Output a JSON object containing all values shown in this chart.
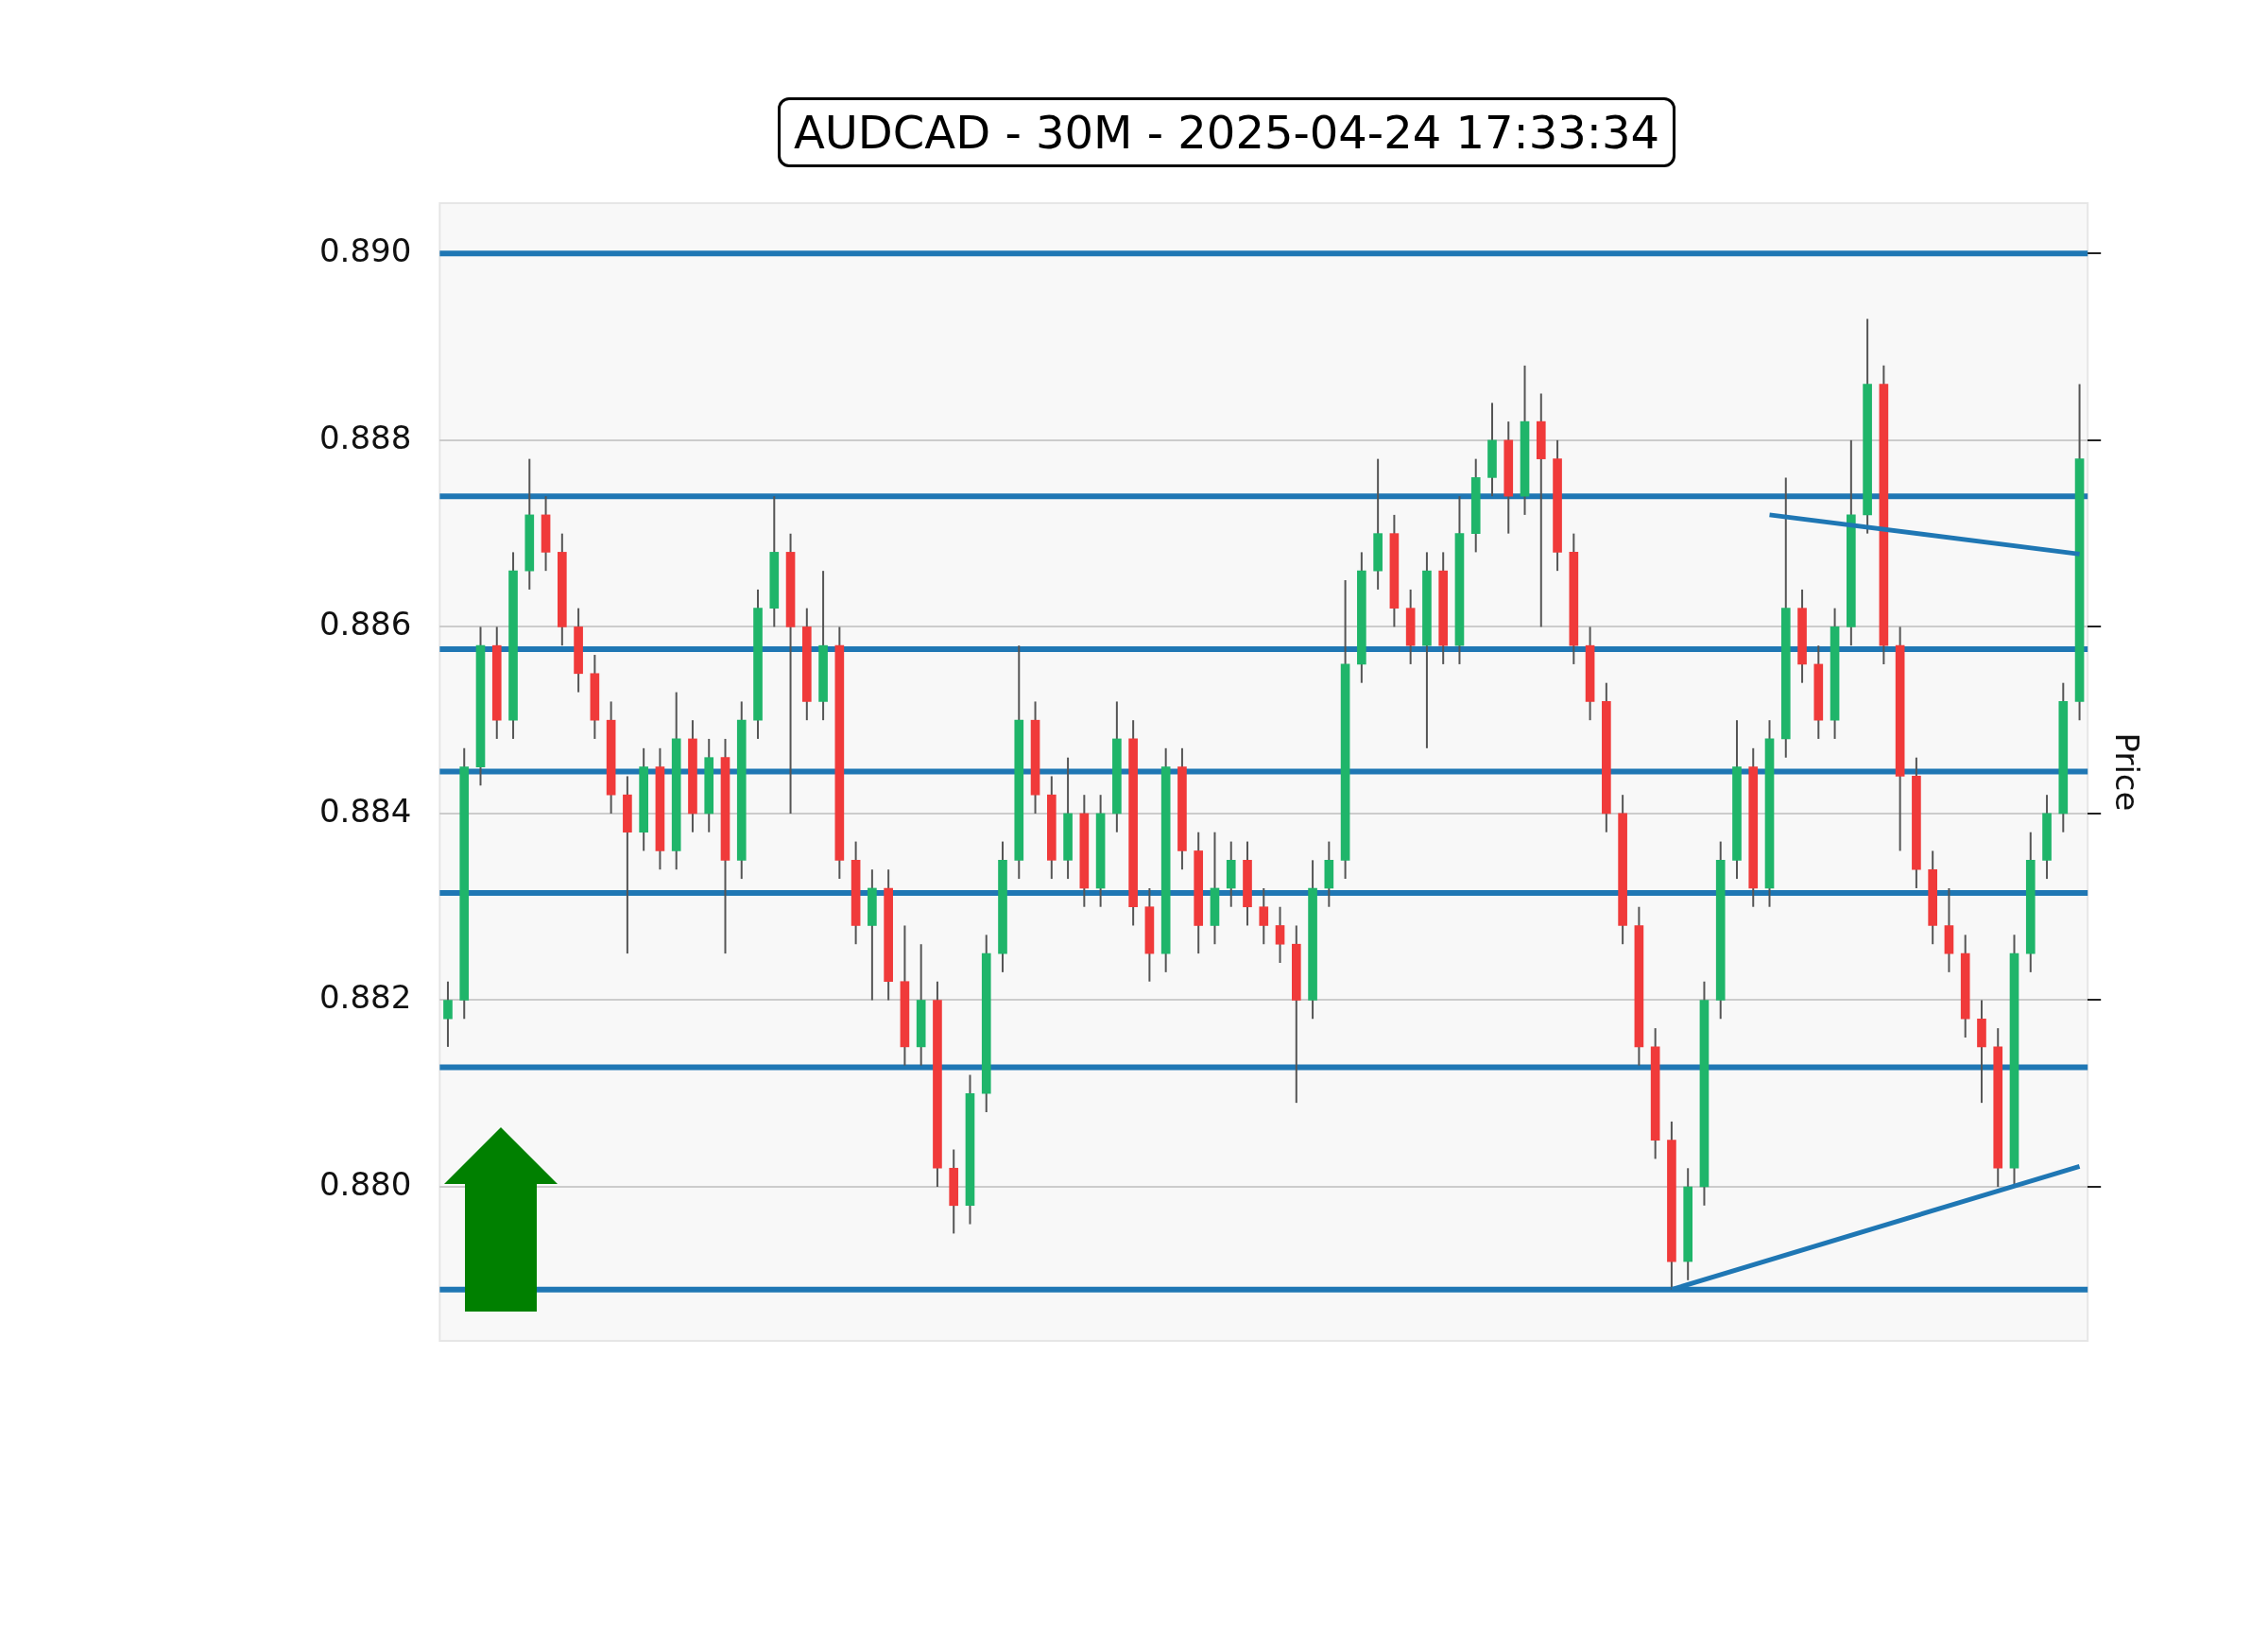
{
  "chart_data": {
    "type": "candlestick",
    "title": "AUDCAD - 30M - 2025-04-24 17:33:34",
    "ylabel": "Price",
    "categories": [
      null,
      null,
      null,
      null,
      null,
      null,
      null,
      null,
      null,
      null,
      null,
      null,
      null,
      null,
      null,
      null,
      null,
      null,
      null,
      null,
      null,
      null,
      null,
      null,
      null,
      null,
      null,
      null,
      null,
      null,
      null,
      null,
      null,
      null,
      null,
      null,
      null,
      null,
      null,
      null,
      null,
      null,
      null,
      null,
      null,
      null,
      null,
      null,
      null,
      null,
      null,
      null,
      null,
      null,
      null,
      null,
      null,
      null,
      null,
      null,
      null,
      null,
      null,
      null,
      null,
      null,
      null,
      null,
      null,
      null,
      null,
      null,
      null,
      null,
      null,
      null,
      null,
      null,
      null,
      null,
      null,
      null,
      null,
      null,
      null,
      null,
      null,
      null,
      null,
      null,
      null,
      null,
      null,
      null,
      null,
      null,
      null,
      null,
      null,
      null,
      null
    ],
    "ohlc": [
      [
        0.8818,
        0.8822,
        0.8815,
        0.882
      ],
      [
        0.882,
        0.8847,
        0.8818,
        0.8845
      ],
      [
        0.8845,
        0.886,
        0.8843,
        0.8858
      ],
      [
        0.8858,
        0.886,
        0.8848,
        0.885
      ],
      [
        0.885,
        0.8868,
        0.8848,
        0.8866
      ],
      [
        0.8866,
        0.8878,
        0.8864,
        0.8872
      ],
      [
        0.8872,
        0.8874,
        0.8866,
        0.8868
      ],
      [
        0.8868,
        0.887,
        0.8858,
        0.886
      ],
      [
        0.886,
        0.8862,
        0.8853,
        0.8855
      ],
      [
        0.8855,
        0.8857,
        0.8848,
        0.885
      ],
      [
        0.885,
        0.8852,
        0.884,
        0.8842
      ],
      [
        0.8842,
        0.8844,
        0.8825,
        0.8838
      ],
      [
        0.8838,
        0.8847,
        0.8836,
        0.8845
      ],
      [
        0.8845,
        0.8847,
        0.8834,
        0.8836
      ],
      [
        0.8836,
        0.8853,
        0.8834,
        0.8848
      ],
      [
        0.8848,
        0.885,
        0.8838,
        0.884
      ],
      [
        0.884,
        0.8848,
        0.8838,
        0.8846
      ],
      [
        0.8846,
        0.8848,
        0.8825,
        0.8835
      ],
      [
        0.8835,
        0.8852,
        0.8833,
        0.885
      ],
      [
        0.885,
        0.8864,
        0.8848,
        0.8862
      ],
      [
        0.8862,
        0.8874,
        0.886,
        0.8868
      ],
      [
        0.8868,
        0.887,
        0.884,
        0.886
      ],
      [
        0.886,
        0.8862,
        0.885,
        0.8852
      ],
      [
        0.8852,
        0.8866,
        0.885,
        0.8858
      ],
      [
        0.8858,
        0.886,
        0.8833,
        0.8835
      ],
      [
        0.8835,
        0.8837,
        0.8826,
        0.8828
      ],
      [
        0.8828,
        0.8834,
        0.882,
        0.8832
      ],
      [
        0.8832,
        0.8834,
        0.882,
        0.8822
      ],
      [
        0.8822,
        0.8828,
        0.8813,
        0.8815
      ],
      [
        0.8815,
        0.8826,
        0.8813,
        0.882
      ],
      [
        0.882,
        0.8822,
        0.88,
        0.8802
      ],
      [
        0.8802,
        0.8804,
        0.8795,
        0.8798
      ],
      [
        0.8798,
        0.8812,
        0.8796,
        0.881
      ],
      [
        0.881,
        0.8827,
        0.8808,
        0.8825
      ],
      [
        0.8825,
        0.8837,
        0.8823,
        0.8835
      ],
      [
        0.8835,
        0.8858,
        0.8833,
        0.885
      ],
      [
        0.885,
        0.8852,
        0.884,
        0.8842
      ],
      [
        0.8842,
        0.8844,
        0.8833,
        0.8835
      ],
      [
        0.8835,
        0.8846,
        0.8833,
        0.884
      ],
      [
        0.884,
        0.8842,
        0.883,
        0.8832
      ],
      [
        0.8832,
        0.8842,
        0.883,
        0.884
      ],
      [
        0.884,
        0.8852,
        0.8838,
        0.8848
      ],
      [
        0.8848,
        0.885,
        0.8828,
        0.883
      ],
      [
        0.883,
        0.8832,
        0.8822,
        0.8825
      ],
      [
        0.8825,
        0.8847,
        0.8823,
        0.8845
      ],
      [
        0.8845,
        0.8847,
        0.8834,
        0.8836
      ],
      [
        0.8836,
        0.8838,
        0.8825,
        0.8828
      ],
      [
        0.8828,
        0.8838,
        0.8826,
        0.8832
      ],
      [
        0.8832,
        0.8837,
        0.883,
        0.8835
      ],
      [
        0.8835,
        0.8837,
        0.8828,
        0.883
      ],
      [
        0.883,
        0.8832,
        0.8826,
        0.8828
      ],
      [
        0.8828,
        0.883,
        0.8824,
        0.8826
      ],
      [
        0.8826,
        0.8828,
        0.8809,
        0.882
      ],
      [
        0.882,
        0.8835,
        0.8818,
        0.8832
      ],
      [
        0.8832,
        0.8837,
        0.883,
        0.8835
      ],
      [
        0.8835,
        0.8865,
        0.8833,
        0.8856
      ],
      [
        0.8856,
        0.8868,
        0.8854,
        0.8866
      ],
      [
        0.8866,
        0.8878,
        0.8864,
        0.887
      ],
      [
        0.887,
        0.8872,
        0.886,
        0.8862
      ],
      [
        0.8862,
        0.8864,
        0.8856,
        0.8858
      ],
      [
        0.8858,
        0.8868,
        0.8847,
        0.8866
      ],
      [
        0.8866,
        0.8868,
        0.8856,
        0.8858
      ],
      [
        0.8858,
        0.8874,
        0.8856,
        0.887
      ],
      [
        0.887,
        0.8878,
        0.8868,
        0.8876
      ],
      [
        0.8876,
        0.8884,
        0.8874,
        0.888
      ],
      [
        0.888,
        0.8882,
        0.887,
        0.8874
      ],
      [
        0.8874,
        0.8888,
        0.8872,
        0.8882
      ],
      [
        0.8882,
        0.8885,
        0.886,
        0.8878
      ],
      [
        0.8878,
        0.888,
        0.8866,
        0.8868
      ],
      [
        0.8868,
        0.887,
        0.8856,
        0.8858
      ],
      [
        0.8858,
        0.886,
        0.885,
        0.8852
      ],
      [
        0.8852,
        0.8854,
        0.8838,
        0.884
      ],
      [
        0.884,
        0.8842,
        0.8826,
        0.8828
      ],
      [
        0.8828,
        0.883,
        0.8813,
        0.8815
      ],
      [
        0.8815,
        0.8817,
        0.8803,
        0.8805
      ],
      [
        0.8805,
        0.8807,
        0.8789,
        0.8792
      ],
      [
        0.8792,
        0.8802,
        0.879,
        0.88
      ],
      [
        0.88,
        0.8822,
        0.8798,
        0.882
      ],
      [
        0.882,
        0.8837,
        0.8818,
        0.8835
      ],
      [
        0.8835,
        0.885,
        0.8833,
        0.8845
      ],
      [
        0.8845,
        0.8847,
        0.883,
        0.8832
      ],
      [
        0.8832,
        0.885,
        0.883,
        0.8848
      ],
      [
        0.8848,
        0.8876,
        0.8846,
        0.8862
      ],
      [
        0.8862,
        0.8864,
        0.8854,
        0.8856
      ],
      [
        0.8856,
        0.8858,
        0.8848,
        0.885
      ],
      [
        0.885,
        0.8862,
        0.8848,
        0.886
      ],
      [
        0.886,
        0.888,
        0.8858,
        0.8872
      ],
      [
        0.8872,
        0.8893,
        0.887,
        0.8886
      ],
      [
        0.8886,
        0.8888,
        0.8856,
        0.8858
      ],
      [
        0.8858,
        0.886,
        0.8836,
        0.8844
      ],
      [
        0.8844,
        0.8846,
        0.8832,
        0.8834
      ],
      [
        0.8834,
        0.8836,
        0.8826,
        0.8828
      ],
      [
        0.8828,
        0.8832,
        0.8823,
        0.8825
      ],
      [
        0.8825,
        0.8827,
        0.8816,
        0.8818
      ],
      [
        0.8818,
        0.882,
        0.8809,
        0.8815
      ],
      [
        0.8815,
        0.8817,
        0.88,
        0.8802
      ],
      [
        0.8802,
        0.8827,
        0.88,
        0.8825
      ],
      [
        0.8825,
        0.8838,
        0.8823,
        0.8835
      ],
      [
        0.8835,
        0.8842,
        0.8833,
        0.884
      ],
      [
        0.884,
        0.8854,
        0.8838,
        0.8852
      ],
      [
        0.8852,
        0.8886,
        0.885,
        0.8878
      ]
    ],
    "series": [
      {
        "type": "line",
        "color": "#1f77b4",
        "values": [
          null,
          null,
          null,
          null,
          null,
          null,
          null,
          null,
          null,
          null,
          null,
          null,
          null,
          null,
          null,
          null,
          null,
          null,
          null,
          null,
          null,
          null,
          null,
          null,
          null,
          null,
          null,
          null,
          null,
          null,
          null,
          null,
          null,
          null,
          null,
          null,
          null,
          null,
          null,
          null,
          null,
          null,
          null,
          null,
          null,
          null,
          null,
          null,
          null,
          null,
          null,
          null,
          null,
          null,
          null,
          null,
          null,
          null,
          null,
          null,
          null,
          null,
          null,
          null,
          null,
          null,
          null,
          null,
          null,
          null,
          null,
          null,
          null,
          null,
          null,
          0.8789,
          null,
          null,
          null,
          null,
          null,
          null,
          null,
          null,
          null,
          null,
          null,
          null,
          null,
          null,
          null,
          null,
          null,
          null,
          null,
          null,
          null,
          null,
          null,
          null,
          0.88022
        ]
      },
      {
        "type": "line",
        "color": "#1f77b4",
        "values": [
          null,
          null,
          null,
          null,
          null,
          null,
          null,
          null,
          null,
          null,
          null,
          null,
          null,
          null,
          null,
          null,
          null,
          null,
          null,
          null,
          null,
          null,
          null,
          null,
          null,
          null,
          null,
          null,
          null,
          null,
          null,
          null,
          null,
          null,
          null,
          null,
          null,
          null,
          null,
          null,
          null,
          null,
          null,
          null,
          null,
          null,
          null,
          null,
          null,
          null,
          null,
          null,
          null,
          null,
          null,
          null,
          null,
          null,
          null,
          null,
          null,
          null,
          null,
          null,
          null,
          null,
          null,
          null,
          null,
          null,
          null,
          null,
          null,
          null,
          null,
          null,
          null,
          null,
          null,
          null,
          null,
          0.8872,
          null,
          null,
          null,
          null,
          null,
          null,
          null,
          null,
          null,
          null,
          null,
          null,
          null,
          null,
          null,
          null,
          null,
          null,
          0.88678
        ]
      }
    ],
    "ref_lines": [
      {
        "axis": "y",
        "value": 0.89,
        "color": "#1f77b4"
      },
      {
        "axis": "y",
        "value": 0.8874,
        "color": "#1f77b4"
      },
      {
        "axis": "y",
        "value": 0.88576,
        "color": "#1f77b4"
      },
      {
        "axis": "y",
        "value": 0.88445,
        "color": "#1f77b4"
      },
      {
        "axis": "y",
        "value": 0.88315,
        "color": "#1f77b4"
      },
      {
        "axis": "y",
        "value": 0.88128,
        "color": "#1f77b4"
      },
      {
        "axis": "y",
        "value": 0.8789,
        "color": "#1f77b4"
      }
    ],
    "ylim": [
      0.87835,
      0.89054
    ],
    "yticks": [
      {
        "value": 0.88,
        "label": "0.880"
      },
      {
        "value": 0.882,
        "label": "0.882"
      },
      {
        "value": 0.884,
        "label": "0.884"
      },
      {
        "value": 0.886,
        "label": "0.886"
      },
      {
        "value": 0.888,
        "label": "0.888"
      },
      {
        "value": 0.89,
        "label": "0.890"
      }
    ],
    "grid": "y",
    "tick_labels": "y"
  }
}
